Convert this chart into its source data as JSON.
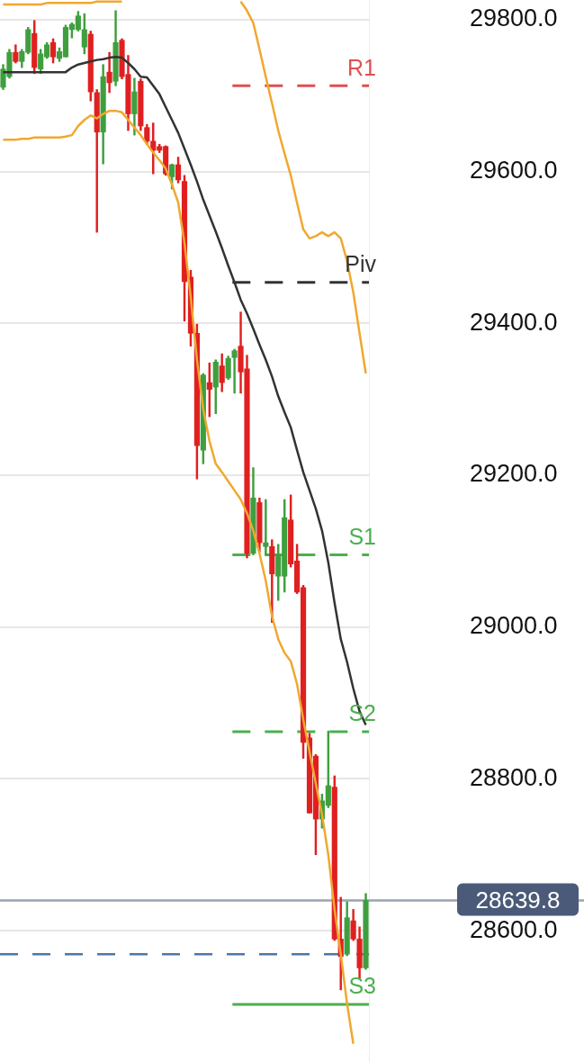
{
  "chart_data": {
    "type": "candlestick",
    "categories": [
      null,
      null,
      null,
      null,
      null,
      null,
      null,
      null,
      null,
      null,
      null,
      null,
      null,
      null,
      null,
      null,
      null,
      null,
      null,
      null,
      null,
      null,
      null,
      null,
      null,
      null,
      null,
      null,
      null,
      null,
      null,
      null,
      null,
      null,
      null,
      null,
      null,
      null,
      null,
      null,
      null,
      null,
      null,
      null,
      null,
      null,
      null,
      null,
      null,
      null,
      null,
      null,
      null,
      null,
      null,
      null,
      null,
      null,
      null
    ],
    "ohlc": [
      [
        29711,
        29741,
        29708,
        29735
      ],
      [
        29725,
        29761,
        29723,
        29757
      ],
      [
        29757,
        29767,
        29743,
        29745
      ],
      [
        29745,
        29761,
        29737,
        29758
      ],
      [
        29757,
        29790,
        29755,
        29787
      ],
      [
        29782,
        29799,
        29729,
        29737
      ],
      [
        29735,
        29761,
        29729,
        29755
      ],
      [
        29751,
        29770,
        29749,
        29767
      ],
      [
        29770,
        29775,
        29743,
        29751
      ],
      [
        29749,
        29763,
        29745,
        29758
      ],
      [
        29751,
        29793,
        29751,
        29790
      ],
      [
        29787,
        29796,
        29776,
        29794
      ],
      [
        29787,
        29811,
        29785,
        29805
      ],
      [
        29764,
        29808,
        29755,
        29787
      ],
      [
        29781,
        29785,
        29693,
        29705
      ],
      [
        29704,
        29708,
        29520,
        29652
      ],
      [
        29652,
        29741,
        29610,
        29725
      ],
      [
        29731,
        29757,
        29704,
        29717
      ],
      [
        29719,
        29812,
        29713,
        29770
      ],
      [
        29773,
        29775,
        29722,
        29725
      ],
      [
        29728,
        29753,
        29654,
        29676
      ],
      [
        29676,
        29723,
        29648,
        29705
      ],
      [
        29719,
        29722,
        29654,
        29660
      ],
      [
        29658,
        29662,
        29636,
        29640
      ],
      [
        29640,
        29664,
        29597,
        29628
      ],
      [
        29633,
        29636,
        29625,
        29628
      ],
      [
        29633,
        29634,
        29595,
        29597
      ],
      [
        29593,
        29610,
        29577,
        29609
      ],
      [
        29609,
        29619,
        29585,
        29589
      ],
      [
        29587,
        29595,
        29403,
        29455
      ],
      [
        29461,
        29470,
        29370,
        29387
      ],
      [
        29387,
        29399,
        29195,
        29239
      ],
      [
        29233,
        29334,
        29215,
        29332
      ],
      [
        29322,
        29348,
        29277,
        29313
      ],
      [
        29316,
        29352,
        29281,
        29349
      ],
      [
        29344,
        29360,
        29310,
        29322
      ],
      [
        29328,
        29357,
        29326,
        29354
      ],
      [
        29355,
        29366,
        29308,
        29364
      ],
      [
        29370,
        29415,
        29308,
        29336
      ],
      [
        29340,
        29358,
        29091,
        29097
      ],
      [
        29097,
        29210,
        29095,
        29170
      ],
      [
        29164,
        29170,
        29099,
        29111
      ],
      [
        29106,
        29168,
        29095,
        29111
      ],
      [
        29106,
        29115,
        29006,
        29070
      ],
      [
        29067,
        29109,
        29035,
        29095
      ],
      [
        29067,
        29168,
        29046,
        29144
      ],
      [
        29141,
        29174,
        29079,
        29083
      ],
      [
        29087,
        29109,
        29044,
        29046
      ],
      [
        29052,
        29055,
        28827,
        28848
      ],
      [
        28854,
        28860,
        28755,
        28755
      ],
      [
        28830,
        28832,
        28700,
        28747
      ],
      [
        28747,
        28780,
        28735,
        28771
      ],
      [
        28765,
        28863,
        28762,
        28791
      ],
      [
        28789,
        28804,
        28587,
        28589
      ],
      [
        28589,
        28644,
        28522,
        28566
      ],
      [
        28569,
        28638,
        28567,
        28617
      ],
      [
        28613,
        28628,
        28587,
        28589
      ],
      [
        28589,
        28605,
        28536,
        28551
      ],
      [
        28551,
        28649,
        28549,
        28639.8
      ]
    ],
    "colors": [
      "#3f9f3f",
      "#3f9f3f",
      "#e02020",
      "#3f9f3f",
      "#3f9f3f",
      "#e02020",
      "#3f9f3f",
      "#3f9f3f",
      "#e02020",
      "#3f9f3f",
      "#3f9f3f",
      "#3f9f3f",
      "#3f9f3f",
      "#3f9f3f",
      "#e02020",
      "#e02020",
      "#3f9f3f",
      "#e02020",
      "#3f9f3f",
      "#e02020",
      "#e02020",
      "#3f9f3f",
      "#e02020",
      "#e02020",
      "#e02020",
      "#e02020",
      "#e02020",
      "#3f9f3f",
      "#e02020",
      "#e02020",
      "#e02020",
      "#e02020",
      "#3f9f3f",
      "#e02020",
      "#3f9f3f",
      "#e02020",
      "#3f9f3f",
      "#3f9f3f",
      "#e02020",
      "#e02020",
      "#3f9f3f",
      "#e02020",
      "#3f9f3f",
      "#e02020",
      "#3f9f3f",
      "#3f9f3f",
      "#e02020",
      "#e02020",
      "#e02020",
      "#e02020",
      "#e02020",
      "#3f9f3f",
      "#3f9f3f",
      "#e02020",
      "#e02020",
      "#3f9f3f",
      "#e02020",
      "#e02020",
      "#3f9f3f"
    ],
    "series": [
      {
        "type": "line",
        "color": "#f0a830",
        "values": [
          29820,
          29820,
          29820,
          29820,
          29820,
          29820,
          29820,
          29822,
          29822,
          29822,
          29822,
          29822,
          29822,
          29822,
          29822,
          29824,
          29824,
          29824,
          29824,
          29824,
          null,
          null,
          null,
          null,
          null,
          null,
          null,
          null,
          null,
          null,
          null,
          null,
          null,
          null,
          null,
          null,
          null,
          null,
          29824,
          29812,
          29796,
          29761,
          29725,
          29690,
          29654,
          29624,
          29595,
          29559,
          29524,
          29512,
          29515,
          29520,
          29515,
          29520,
          29512,
          29482,
          29441,
          29387,
          29334
        ]
      },
      {
        "type": "line",
        "color": "#333333",
        "values": [
          29731,
          29731,
          29731,
          29731,
          29731,
          29731,
          29731,
          29731,
          29731,
          29731,
          29731,
          29737,
          29741,
          29743,
          29745,
          29747,
          29748,
          29750,
          29751,
          29750,
          29743,
          29735,
          29725,
          29724,
          29713,
          29702,
          29685,
          29668,
          29651,
          29630,
          29609,
          29587,
          29563,
          29542,
          29521,
          29499,
          29476,
          29454,
          29431,
          29413,
          29393,
          29372,
          29352,
          29330,
          29304,
          29283,
          29263,
          29233,
          29204,
          29180,
          29156,
          29127,
          29085,
          29032,
          28984,
          28954,
          28919,
          28889,
          28871
        ]
      },
      {
        "type": "line",
        "color": "#f0a830",
        "values": [
          29642,
          29642,
          29642,
          29643,
          29643,
          29645,
          29645,
          29645,
          29645,
          29645,
          29646,
          29648,
          29660,
          29668,
          29674,
          29670,
          29676,
          29680,
          29680,
          29678,
          29668,
          29658,
          29648,
          29636,
          29625,
          29615,
          29604,
          29583,
          29559,
          29506,
          29435,
          29352,
          29287,
          29245,
          29215,
          29204,
          29192,
          29180,
          29168,
          29150,
          29127,
          29097,
          29061,
          29014,
          28984,
          28966,
          28955,
          28925,
          28878,
          28836,
          28794,
          28753,
          28700,
          28628,
          28569,
          28504,
          28451,
          null,
          null
        ]
      }
    ],
    "ylim": [
      28427,
      29826
    ],
    "yticks": [
      {
        "value": 28600,
        "label": "28600.0"
      },
      {
        "value": 28800,
        "label": "28800.0"
      },
      {
        "value": 29000,
        "label": "29000.0"
      },
      {
        "value": 29200,
        "label": "29200.0"
      },
      {
        "value": 29400,
        "label": "29400.0"
      },
      {
        "value": 29600,
        "label": "29600.0"
      },
      {
        "value": 29800,
        "label": "29800.0"
      }
    ],
    "ref_lines": [
      {
        "axis": "y",
        "value": 29713,
        "label": "R1",
        "color": "#e05050",
        "line_style": "dashed"
      },
      {
        "axis": "y",
        "value": 29454,
        "label": "Piv",
        "color": "#333333",
        "line_style": "dashed"
      },
      {
        "axis": "y",
        "value": 29095,
        "label": "S1",
        "color": "#4caf50",
        "line_style": "dashed"
      },
      {
        "axis": "y",
        "value": 28862,
        "label": "S2",
        "color": "#4caf50",
        "line_style": "dashed"
      },
      {
        "axis": "y",
        "value": 28503,
        "label": "S3",
        "color": "#4caf50",
        "line_style": "solid"
      },
      {
        "axis": "y",
        "value": 28639.8,
        "label": "28639.8",
        "color": "#9aa3b2",
        "line_style": "solid"
      },
      {
        "axis": "y",
        "value": 28569,
        "color": "#4a78a8",
        "line_style": "dashed"
      }
    ],
    "grid": "y",
    "legend": false,
    "marker": "none",
    "tick_labels": "y"
  }
}
